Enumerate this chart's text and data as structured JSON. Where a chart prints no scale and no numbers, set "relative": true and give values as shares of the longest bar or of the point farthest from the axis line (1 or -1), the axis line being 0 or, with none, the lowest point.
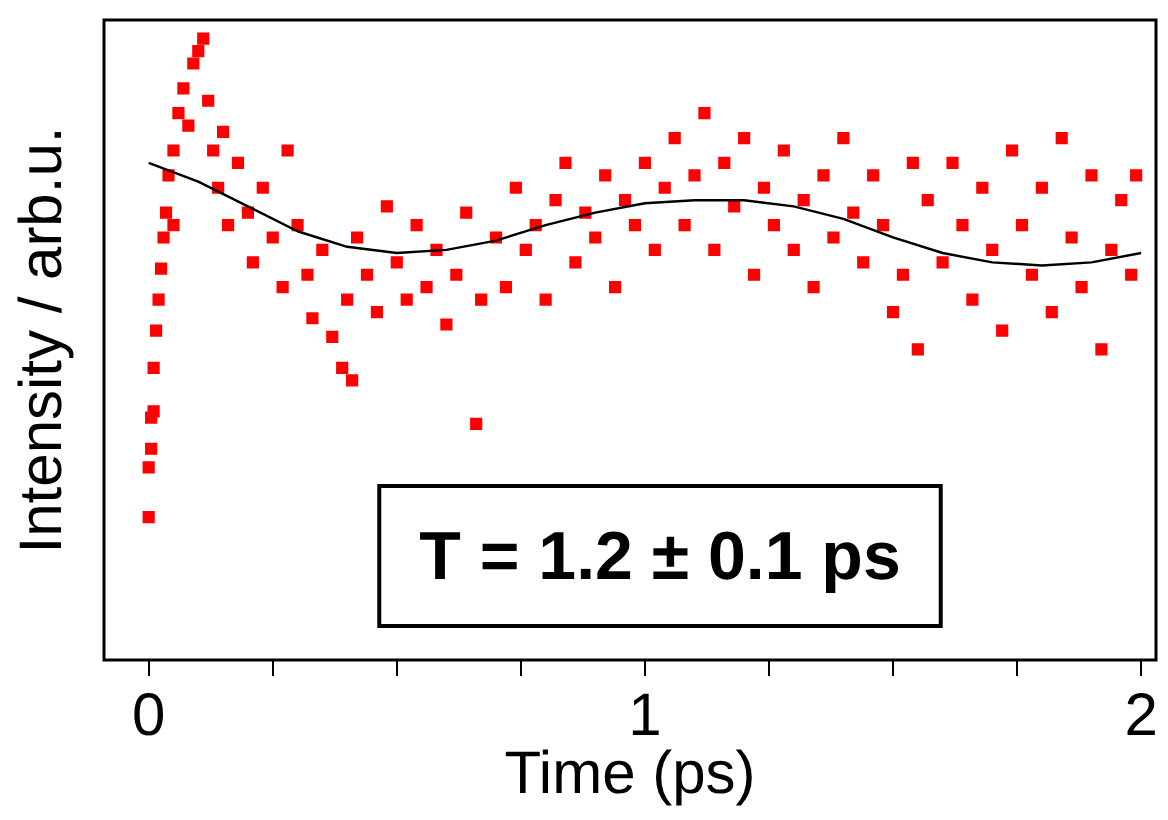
{
  "chart_data": {
    "type": "scatter",
    "relative": true,
    "xlabel": "Time (ps)",
    "ylabel": "Intensity / arb.u.",
    "marker": "square",
    "legend": false,
    "grid": false,
    "tick_labels": "x",
    "xlim": [
      -0.09,
      2.03
    ],
    "xticks": [
      0,
      {
        "value": 0.25,
        "label": null
      },
      {
        "value": 0.5,
        "label": null
      },
      {
        "value": 0.75,
        "label": null
      },
      1,
      {
        "value": 1.25,
        "label": null
      },
      {
        "value": 1.5,
        "label": null
      },
      {
        "value": 1.75,
        "label": null
      },
      2
    ],
    "annotations": [
      "T = 1.2 ± 0.1 ps"
    ],
    "series": [
      {
        "color": "#ff0000",
        "x": [
          0,
          0,
          0.005,
          0.005,
          0.01,
          0.01,
          0.015,
          0.02,
          0.025,
          0.03,
          0.035,
          0.04,
          0.05,
          0.05,
          0.06,
          0.07,
          0.08,
          0.09,
          0.1,
          0.11,
          0.12,
          0.13,
          0.14,
          0.15,
          0.16,
          0.18,
          0.2,
          0.21,
          0.23,
          0.25,
          0.27,
          0.28,
          0.3,
          0.32,
          0.33,
          0.35,
          0.37,
          0.39,
          0.4,
          0.41,
          0.42,
          0.44,
          0.46,
          0.48,
          0.5,
          0.52,
          0.54,
          0.56,
          0.58,
          0.6,
          0.62,
          0.64,
          0.66,
          0.67,
          0.7,
          0.72,
          0.74,
          0.76,
          0.78,
          0.8,
          0.82,
          0.84,
          0.86,
          0.88,
          0.9,
          0.92,
          0.94,
          0.96,
          0.98,
          1.0,
          1.02,
          1.04,
          1.06,
          1.08,
          1.1,
          1.12,
          1.14,
          1.16,
          1.18,
          1.2,
          1.22,
          1.24,
          1.26,
          1.28,
          1.3,
          1.32,
          1.34,
          1.36,
          1.38,
          1.4,
          1.42,
          1.44,
          1.46,
          1.48,
          1.5,
          1.52,
          1.54,
          1.55,
          1.57,
          1.6,
          1.62,
          1.64,
          1.66,
          1.68,
          1.7,
          1.72,
          1.74,
          1.76,
          1.78,
          1.8,
          1.82,
          1.84,
          1.86,
          1.88,
          1.9,
          1.92,
          1.94,
          1.96,
          1.98,
          1.99
        ],
        "values": [
          0.23,
          0.31,
          0.34,
          0.39,
          0.4,
          0.47,
          0.53,
          0.58,
          0.63,
          0.68,
          0.72,
          0.78,
          0.82,
          0.7,
          0.88,
          0.92,
          0.86,
          0.96,
          0.98,
          1.0,
          0.9,
          0.82,
          0.76,
          0.85,
          0.7,
          0.8,
          0.72,
          0.64,
          0.76,
          0.68,
          0.6,
          0.82,
          0.7,
          0.62,
          0.55,
          0.66,
          0.52,
          0.47,
          0.58,
          0.45,
          0.68,
          0.62,
          0.56,
          0.73,
          0.64,
          0.58,
          0.7,
          0.6,
          0.66,
          0.54,
          0.62,
          0.72,
          0.38,
          0.58,
          0.68,
          0.6,
          0.76,
          0.66,
          0.7,
          0.58,
          0.74,
          0.8,
          0.64,
          0.72,
          0.68,
          0.78,
          0.6,
          0.74,
          0.7,
          0.8,
          0.66,
          0.76,
          0.84,
          0.7,
          0.78,
          0.88,
          0.66,
          0.8,
          0.73,
          0.84,
          0.62,
          0.76,
          0.7,
          0.82,
          0.66,
          0.74,
          0.6,
          0.78,
          0.68,
          0.84,
          0.72,
          0.64,
          0.78,
          0.7,
          0.56,
          0.62,
          0.8,
          0.5,
          0.74,
          0.64,
          0.8,
          0.7,
          0.58,
          0.76,
          0.66,
          0.53,
          0.82,
          0.7,
          0.62,
          0.76,
          0.56,
          0.84,
          0.68,
          0.6,
          0.78,
          0.5,
          0.66,
          0.74,
          0.62,
          0.78
        ]
      },
      {
        "type": "line",
        "color": "#000000",
        "marker": "none",
        "x": [
          0,
          0.1,
          0.2,
          0.3,
          0.4,
          0.5,
          0.6,
          0.7,
          0.8,
          0.9,
          1.0,
          1.1,
          1.2,
          1.3,
          1.4,
          1.5,
          1.6,
          1.7,
          1.8,
          1.9,
          2.0
        ],
        "values": [
          0.8,
          0.77,
          0.73,
          0.69,
          0.665,
          0.655,
          0.66,
          0.675,
          0.7,
          0.72,
          0.735,
          0.74,
          0.74,
          0.73,
          0.71,
          0.68,
          0.655,
          0.64,
          0.635,
          0.64,
          0.655
        ]
      }
    ]
  }
}
